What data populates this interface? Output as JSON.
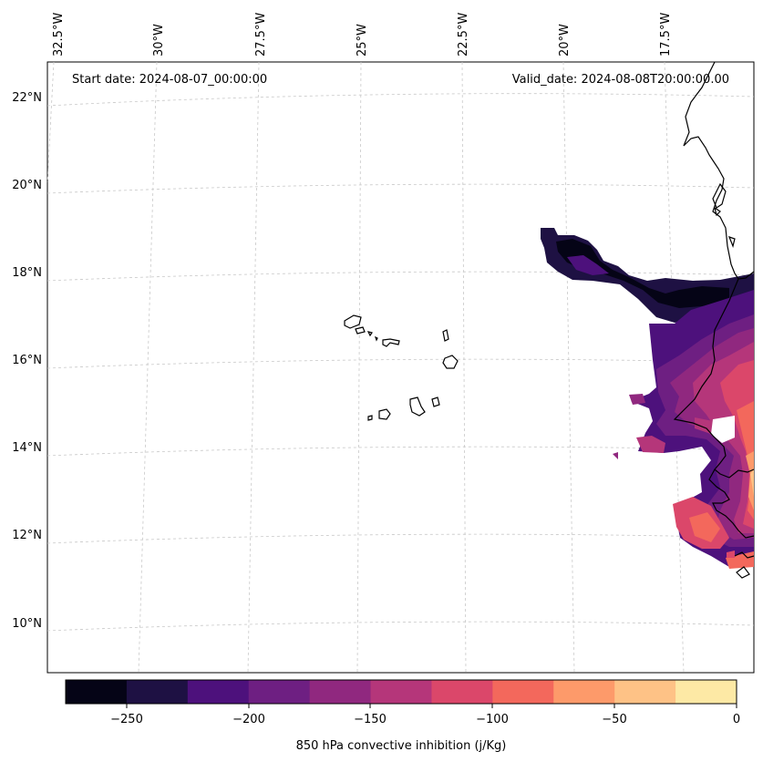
{
  "map": {
    "start_label": "Start date: 2024-08-07_00:00:00",
    "valid_label": "Valid_date: 2024-08-08T20:00:00.00",
    "lon_labels": [
      "32.5°W",
      "30°W",
      "27.5°W",
      "25°W",
      "22.5°W",
      "20°W",
      "17.5°W"
    ],
    "lat_labels": [
      "22°N",
      "20°N",
      "18°N",
      "16°N",
      "14°N",
      "12°N",
      "10°N"
    ],
    "field": "850 hPa convective inhibition",
    "features": [
      "Cabo Verde islands",
      "West African coastline"
    ]
  },
  "colorbar": {
    "label": "850 hPa convective inhibition (j/Kg)",
    "ticks": [
      "−250",
      "−200",
      "−150",
      "−100",
      "−50",
      "0"
    ],
    "levels": [
      -275,
      -250,
      -225,
      -200,
      -175,
      -150,
      -125,
      -100,
      -75,
      -50,
      -25,
      0
    ],
    "colors": [
      "#050416",
      "#1e1143",
      "#4d117c",
      "#6e1f82",
      "#90287f",
      "#b5367a",
      "#db476a",
      "#f3685c",
      "#fd9a6a",
      "#fec286",
      "#fde9a5"
    ]
  }
}
